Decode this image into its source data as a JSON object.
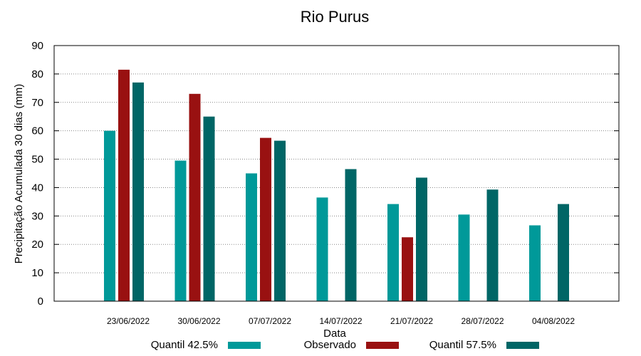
{
  "chart_data": {
    "type": "bar",
    "title": "Rio Purus",
    "xlabel": "Data",
    "ylabel": "Precipitação Acumulada 30 dias (mm)",
    "ylim": [
      0,
      90
    ],
    "yticks": [
      0,
      10,
      20,
      30,
      40,
      50,
      60,
      70,
      80,
      90
    ],
    "grid": true,
    "legend_position": "bottom",
    "categories": [
      "23/06/2022",
      "30/06/2022",
      "07/07/2022",
      "14/07/2022",
      "21/07/2022",
      "28/07/2022",
      "04/08/2022"
    ],
    "series": [
      {
        "name": "Quantil 42.5%",
        "color": "#009999",
        "values": [
          60,
          49.5,
          45,
          36.5,
          34.2,
          30.5,
          26.7
        ]
      },
      {
        "name": "Observado",
        "color": "#991111",
        "values": [
          81.5,
          73,
          57.5,
          null,
          22.5,
          null,
          null
        ]
      },
      {
        "name": "Quantil 57.5%",
        "color": "#006666",
        "values": [
          77,
          65,
          56.5,
          46.5,
          43.5,
          39.3,
          34.2
        ]
      }
    ]
  }
}
